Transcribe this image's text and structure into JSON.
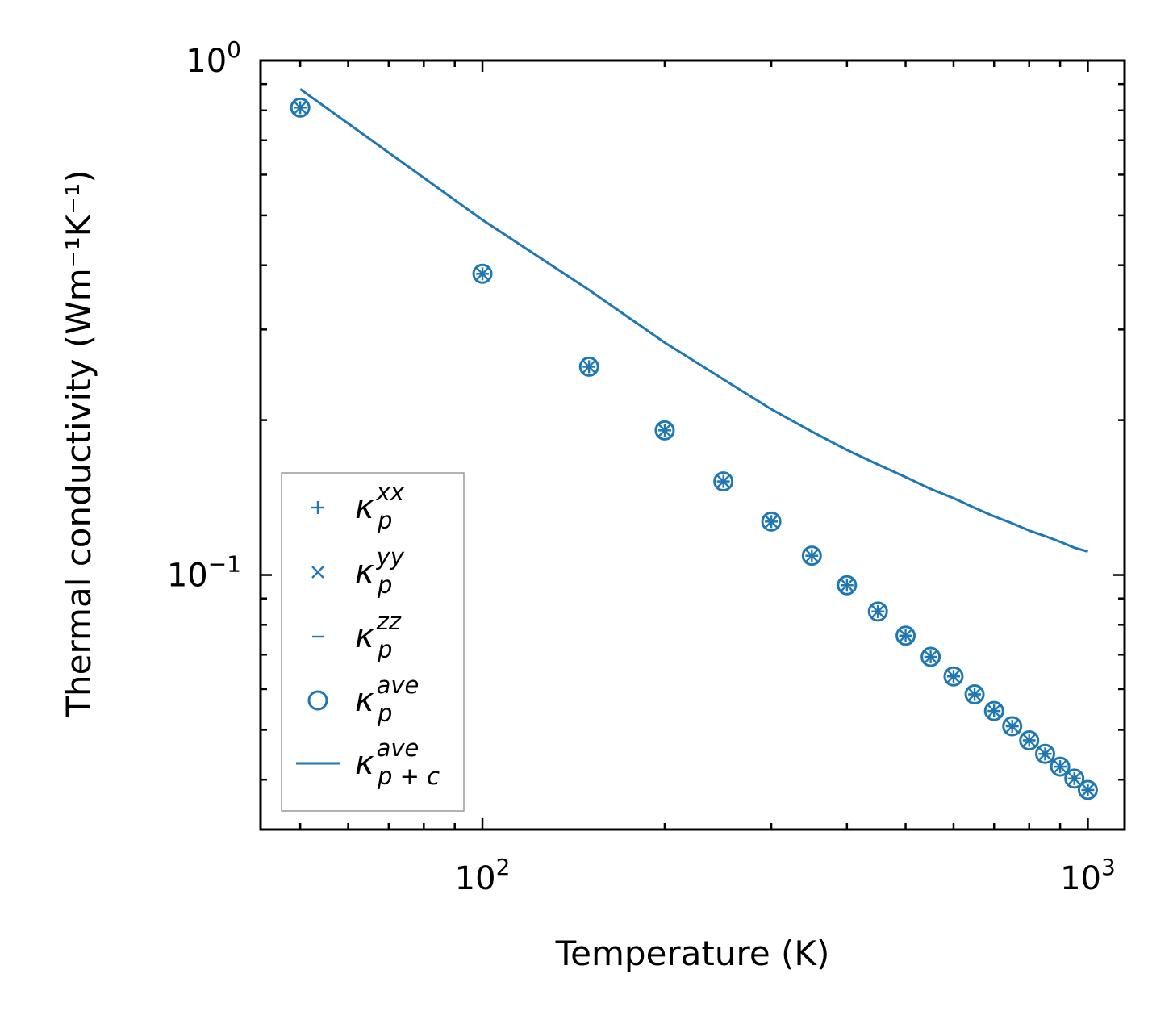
{
  "chart_data": {
    "type": "scatter",
    "xscale": "log",
    "yscale": "log",
    "xlabel": "Temperature (K)",
    "ylabel": "Thermal conductivity (Wm⁻¹K⁻¹)",
    "xlim": [
      43,
      1150
    ],
    "ylim": [
      0.032,
      1.0
    ],
    "x_ticks": [
      {
        "value": 100,
        "base": "10",
        "exp": "2"
      },
      {
        "value": 1000,
        "base": "10",
        "exp": "3"
      }
    ],
    "y_ticks": [
      {
        "value": 0.1,
        "base": "10",
        "exp": "−1"
      },
      {
        "value": 1.0,
        "base": "10",
        "exp": "0"
      }
    ],
    "x": [
      50,
      100,
      150,
      200,
      250,
      300,
      350,
      400,
      450,
      500,
      550,
      600,
      650,
      700,
      750,
      800,
      850,
      900,
      950,
      1000
    ],
    "series": [
      {
        "name": "kappa_p_xx",
        "marker": "plus",
        "values": [
          0.81,
          0.385,
          0.254,
          0.191,
          0.152,
          0.127,
          0.109,
          0.0955,
          0.0849,
          0.0762,
          0.0693,
          0.0635,
          0.0586,
          0.0544,
          0.0508,
          0.0477,
          0.0449,
          0.0424,
          0.0402,
          0.0382
        ]
      },
      {
        "name": "kappa_p_yy",
        "marker": "x",
        "values": [
          0.81,
          0.385,
          0.254,
          0.191,
          0.152,
          0.127,
          0.109,
          0.0955,
          0.0849,
          0.0762,
          0.0693,
          0.0635,
          0.0586,
          0.0544,
          0.0508,
          0.0477,
          0.0449,
          0.0424,
          0.0402,
          0.0382
        ]
      },
      {
        "name": "kappa_p_zz",
        "marker": "hline",
        "values": [
          0.81,
          0.385,
          0.254,
          0.191,
          0.152,
          0.127,
          0.109,
          0.0955,
          0.0849,
          0.0762,
          0.0693,
          0.0635,
          0.0586,
          0.0544,
          0.0508,
          0.0477,
          0.0449,
          0.0424,
          0.0402,
          0.0382
        ]
      },
      {
        "name": "kappa_p_ave",
        "marker": "circle",
        "values": [
          0.81,
          0.385,
          0.254,
          0.191,
          0.152,
          0.127,
          0.109,
          0.0955,
          0.0849,
          0.0762,
          0.0693,
          0.0635,
          0.0586,
          0.0544,
          0.0508,
          0.0477,
          0.0449,
          0.0424,
          0.0402,
          0.0382
        ]
      },
      {
        "name": "kappa_p+c_ave",
        "marker": "line",
        "values": [
          0.88,
          0.49,
          0.358,
          0.283,
          0.24,
          0.21,
          0.19,
          0.175,
          0.164,
          0.155,
          0.147,
          0.141,
          0.135,
          0.13,
          0.126,
          0.122,
          0.119,
          0.116,
          0.113,
          0.111
        ]
      }
    ],
    "color": "#1f77b4",
    "legend": {
      "position": "lower-left",
      "entries": [
        {
          "marker": "plus",
          "base": "κ",
          "sub": "p",
          "sup": "xx"
        },
        {
          "marker": "x",
          "base": "κ",
          "sub": "p",
          "sup": "yy"
        },
        {
          "marker": "hline",
          "base": "κ",
          "sub": "p",
          "sup": "zz"
        },
        {
          "marker": "circle",
          "base": "κ",
          "sub": "p",
          "sup": "ave"
        },
        {
          "marker": "line",
          "base": "κ",
          "sub": "p + c",
          "sup": "ave"
        }
      ]
    }
  }
}
